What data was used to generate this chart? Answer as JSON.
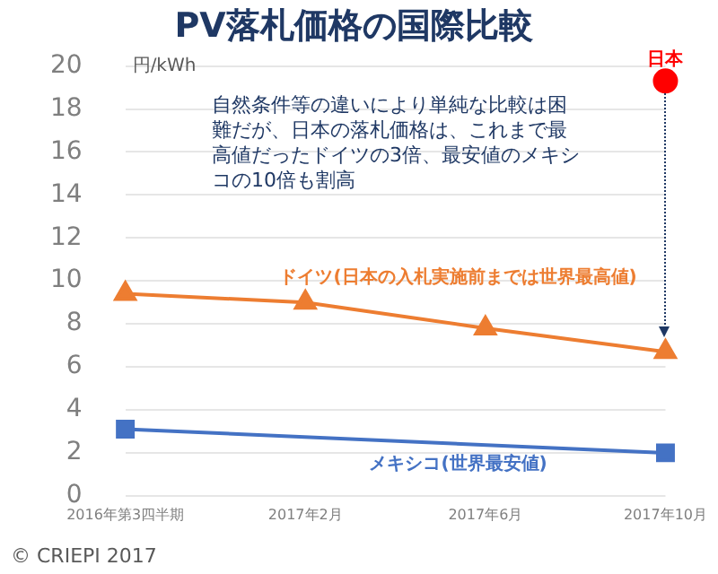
{
  "chart_data": {
    "type": "line",
    "title": "PV落札価格の国際比較",
    "ylabel": "円/kWh",
    "categories": [
      "2016年第3四半期",
      "2017年2月",
      "2017年6月",
      "2017年10月"
    ],
    "series": [
      {
        "name": "ドイツ(日本の入札実施前までは世界最高値)",
        "color": "#ed7d31",
        "marker": "triangle",
        "values": [
          9.4,
          9.0,
          7.8,
          6.7
        ]
      },
      {
        "name": "メキシコ(世界最安値)",
        "color": "#4472c4",
        "marker": "square",
        "values": [
          3.1,
          null,
          null,
          2.0
        ]
      },
      {
        "name": "日本",
        "type": "scatter",
        "color": "#ff0000",
        "marker": "circle",
        "values": [
          null,
          null,
          null,
          19.3
        ]
      }
    ],
    "ylim": [
      0,
      20
    ],
    "yticks": [
      0,
      2,
      4,
      6,
      8,
      10,
      12,
      14,
      16,
      18,
      20
    ],
    "grid": "y",
    "legend": false,
    "annotations": [
      "自然条件等の違いにより単純な比較は困難だが、日本の落札価格は、これまで最高値だったドイツの3倍、最安値のメキシコの10倍も割高",
      "© CRIEPI 2017"
    ]
  }
}
